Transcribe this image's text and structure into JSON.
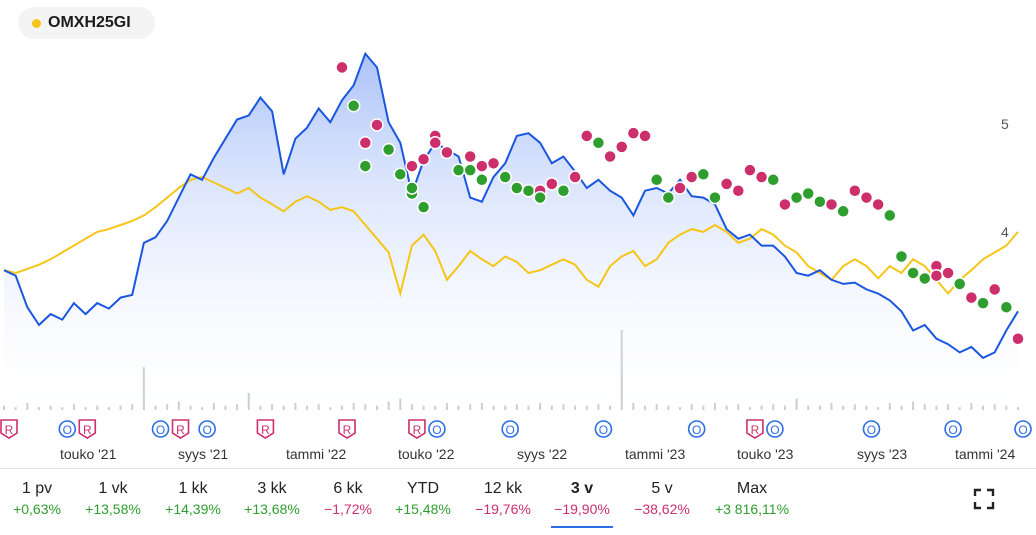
{
  "legend": {
    "label": "OMXH25GI",
    "color": "#f5c518"
  },
  "colors": {
    "stock_line": "#1a56e0",
    "index_line": "#f5c518",
    "area_top": "#9db8f7",
    "area_bottom": "#ffffff",
    "green_marker": "#2e9e2e",
    "red_marker": "#cc2f6b",
    "positive": "#2e9e2e",
    "negative": "#cc2f6b"
  },
  "chart_data": {
    "type": "line",
    "y_ticks": [
      "5",
      "4"
    ],
    "x_tick_labels": [
      "touko '21",
      "syys '21",
      "tammi '22",
      "touko '22",
      "syys '22",
      "tammi '23",
      "touko '23",
      "syys '23",
      "tammi '24"
    ],
    "series": [
      {
        "name": "",
        "values": [
          4.02,
          3.98,
          3.75,
          3.62,
          3.7,
          3.66,
          3.78,
          3.7,
          3.78,
          3.74,
          3.82,
          3.84,
          4.22,
          4.26,
          4.38,
          4.55,
          4.72,
          4.68,
          4.84,
          4.98,
          5.12,
          5.15,
          5.28,
          5.18,
          4.72,
          4.98,
          5.06,
          5.2,
          5.1,
          5.26,
          5.37,
          5.6,
          5.5,
          5.1,
          4.95,
          4.58,
          4.82,
          4.95,
          4.9,
          4.85,
          4.55,
          4.52,
          4.7,
          4.8,
          5.0,
          5.02,
          4.95,
          4.8,
          4.85,
          4.74,
          4.62,
          4.68,
          4.6,
          4.55,
          4.42,
          4.6,
          4.62,
          4.58,
          4.68,
          4.56,
          4.55,
          4.5,
          4.32,
          4.25,
          4.28,
          4.2,
          4.2,
          4.12,
          4.0,
          3.98,
          4.02,
          3.95,
          3.92,
          3.93,
          3.88,
          3.85,
          3.8,
          3.72,
          3.58,
          3.62,
          3.52,
          3.48,
          3.42,
          3.46,
          3.38,
          3.42,
          3.58,
          3.72
        ]
      },
      {
        "name": "OMXH25GI",
        "values": [
          4.02,
          4.0,
          4.03,
          4.06,
          4.1,
          4.15,
          4.2,
          4.25,
          4.3,
          4.32,
          4.35,
          4.38,
          4.42,
          4.48,
          4.55,
          4.62,
          4.68,
          4.7,
          4.66,
          4.62,
          4.58,
          4.62,
          4.55,
          4.5,
          4.45,
          4.52,
          4.56,
          4.52,
          4.46,
          4.48,
          4.45,
          4.35,
          4.25,
          4.15,
          3.85,
          4.2,
          4.28,
          4.16,
          3.95,
          4.05,
          4.16,
          4.1,
          4.05,
          4.12,
          4.08,
          4.0,
          4.02,
          4.06,
          4.1,
          4.06,
          3.95,
          3.9,
          4.05,
          4.12,
          4.16,
          4.05,
          4.1,
          4.22,
          4.28,
          4.32,
          4.3,
          4.35,
          4.3,
          4.22,
          4.25,
          4.32,
          4.28,
          4.2,
          4.15,
          4.05,
          4.0,
          3.95,
          4.05,
          4.1,
          4.05,
          3.96,
          4.05,
          4.0,
          4.1,
          4.05,
          3.95,
          3.85,
          3.95,
          4.02,
          4.1,
          4.15,
          4.2,
          4.3
        ]
      }
    ],
    "markers": [
      {
        "i": 29,
        "v": 5.5,
        "c": "r"
      },
      {
        "i": 30,
        "v": 5.22,
        "c": "g"
      },
      {
        "i": 31,
        "v": 4.95,
        "c": "r"
      },
      {
        "i": 31,
        "v": 4.78,
        "c": "g"
      },
      {
        "i": 32,
        "v": 5.08,
        "c": "r"
      },
      {
        "i": 33,
        "v": 4.9,
        "c": "g"
      },
      {
        "i": 34,
        "v": 4.72,
        "c": "g"
      },
      {
        "i": 35,
        "v": 4.58,
        "c": "g"
      },
      {
        "i": 36,
        "v": 4.48,
        "c": "g"
      },
      {
        "i": 35,
        "v": 4.62,
        "c": "g"
      },
      {
        "i": 35,
        "v": 4.78,
        "c": "r"
      },
      {
        "i": 36,
        "v": 4.83,
        "c": "r"
      },
      {
        "i": 37,
        "v": 5.0,
        "c": "r"
      },
      {
        "i": 37,
        "v": 4.95,
        "c": "r"
      },
      {
        "i": 38,
        "v": 4.88,
        "c": "r"
      },
      {
        "i": 39,
        "v": 4.75,
        "c": "g"
      },
      {
        "i": 40,
        "v": 4.75,
        "c": "g"
      },
      {
        "i": 40,
        "v": 4.85,
        "c": "r"
      },
      {
        "i": 41,
        "v": 4.78,
        "c": "r"
      },
      {
        "i": 41,
        "v": 4.68,
        "c": "g"
      },
      {
        "i": 42,
        "v": 4.8,
        "c": "r"
      },
      {
        "i": 43,
        "v": 4.7,
        "c": "g"
      },
      {
        "i": 44,
        "v": 4.62,
        "c": "g"
      },
      {
        "i": 45,
        "v": 4.6,
        "c": "g"
      },
      {
        "i": 46,
        "v": 4.6,
        "c": "r"
      },
      {
        "i": 46,
        "v": 4.55,
        "c": "g"
      },
      {
        "i": 47,
        "v": 4.65,
        "c": "r"
      },
      {
        "i": 48,
        "v": 4.6,
        "c": "g"
      },
      {
        "i": 49,
        "v": 4.7,
        "c": "r"
      },
      {
        "i": 50,
        "v": 5.0,
        "c": "r"
      },
      {
        "i": 51,
        "v": 4.95,
        "c": "g"
      },
      {
        "i": 52,
        "v": 4.85,
        "c": "r"
      },
      {
        "i": 53,
        "v": 4.92,
        "c": "r"
      },
      {
        "i": 54,
        "v": 5.02,
        "c": "r"
      },
      {
        "i": 55,
        "v": 5.0,
        "c": "r"
      },
      {
        "i": 56,
        "v": 4.68,
        "c": "g"
      },
      {
        "i": 57,
        "v": 4.55,
        "c": "g"
      },
      {
        "i": 58,
        "v": 4.62,
        "c": "r"
      },
      {
        "i": 59,
        "v": 4.7,
        "c": "r"
      },
      {
        "i": 60,
        "v": 4.72,
        "c": "g"
      },
      {
        "i": 61,
        "v": 4.55,
        "c": "g"
      },
      {
        "i": 62,
        "v": 4.65,
        "c": "r"
      },
      {
        "i": 63,
        "v": 4.6,
        "c": "r"
      },
      {
        "i": 64,
        "v": 4.75,
        "c": "r"
      },
      {
        "i": 65,
        "v": 4.7,
        "c": "r"
      },
      {
        "i": 66,
        "v": 4.68,
        "c": "g"
      },
      {
        "i": 67,
        "v": 4.5,
        "c": "r"
      },
      {
        "i": 68,
        "v": 4.55,
        "c": "g"
      },
      {
        "i": 69,
        "v": 4.58,
        "c": "g"
      },
      {
        "i": 70,
        "v": 4.52,
        "c": "g"
      },
      {
        "i": 71,
        "v": 4.5,
        "c": "r"
      },
      {
        "i": 72,
        "v": 4.45,
        "c": "g"
      },
      {
        "i": 73,
        "v": 4.6,
        "c": "r"
      },
      {
        "i": 74,
        "v": 4.55,
        "c": "r"
      },
      {
        "i": 75,
        "v": 4.5,
        "c": "r"
      },
      {
        "i": 76,
        "v": 4.42,
        "c": "g"
      },
      {
        "i": 77,
        "v": 4.12,
        "c": "g"
      },
      {
        "i": 78,
        "v": 4.0,
        "c": "g"
      },
      {
        "i": 79,
        "v": 3.96,
        "c": "g"
      },
      {
        "i": 80,
        "v": 4.05,
        "c": "r"
      },
      {
        "i": 80,
        "v": 3.98,
        "c": "r"
      },
      {
        "i": 81,
        "v": 4.0,
        "c": "r"
      },
      {
        "i": 82,
        "v": 3.92,
        "c": "g"
      },
      {
        "i": 83,
        "v": 3.82,
        "c": "r"
      },
      {
        "i": 84,
        "v": 3.78,
        "c": "g"
      },
      {
        "i": 85,
        "v": 3.88,
        "c": "r"
      },
      {
        "i": 86,
        "v": 3.75,
        "c": "g"
      },
      {
        "i": 87,
        "v": 3.52,
        "c": "r"
      }
    ],
    "volume": [
      3,
      2,
      5,
      2,
      3,
      2,
      4,
      2,
      3,
      2,
      3,
      4,
      30,
      3,
      4,
      6,
      3,
      2,
      5,
      3,
      4,
      12,
      3,
      4,
      3,
      5,
      3,
      4,
      2,
      3,
      5,
      4,
      3,
      6,
      8,
      4,
      3,
      3,
      5,
      3,
      4,
      5,
      3,
      3,
      4,
      3,
      5,
      3,
      4,
      3,
      3,
      4,
      3,
      56,
      5,
      3,
      4,
      3,
      2,
      4,
      3,
      5,
      3,
      4,
      2,
      3,
      4,
      3,
      8,
      3,
      3,
      5,
      3,
      4,
      3,
      2,
      5,
      3,
      6,
      4,
      3,
      4,
      2,
      5,
      3,
      4,
      3,
      2
    ],
    "events": [
      {
        "pos": 0,
        "letters": [
          "R"
        ]
      },
      {
        "pos": 5,
        "letters": [
          "O",
          "R"
        ]
      },
      {
        "pos": 13,
        "letters": [
          "O",
          "R"
        ]
      },
      {
        "pos": 17,
        "letters": [
          "O"
        ]
      },
      {
        "pos": 22,
        "letters": [
          "R"
        ]
      },
      {
        "pos": 29,
        "letters": [
          "R"
        ]
      },
      {
        "pos": 35,
        "letters": [
          "R",
          "O"
        ]
      },
      {
        "pos": 43,
        "letters": [
          "O"
        ]
      },
      {
        "pos": 51,
        "letters": [
          "O"
        ]
      },
      {
        "pos": 59,
        "letters": [
          "O"
        ]
      },
      {
        "pos": 64,
        "letters": [
          "R",
          "O"
        ]
      },
      {
        "pos": 74,
        "letters": [
          "O"
        ]
      },
      {
        "pos": 81,
        "letters": [
          "O"
        ]
      },
      {
        "pos": 87,
        "letters": [
          "O"
        ]
      }
    ]
  },
  "ranges": [
    {
      "label": "1 pv",
      "change": "+0,63%",
      "positive": true
    },
    {
      "label": "1 vk",
      "change": "+13,58%",
      "positive": true
    },
    {
      "label": "1 kk",
      "change": "+14,39%",
      "positive": true
    },
    {
      "label": "3 kk",
      "change": "+13,68%",
      "positive": true
    },
    {
      "label": "6 kk",
      "change": "−1,72%",
      "positive": false
    },
    {
      "label": "YTD",
      "change": "+15,48%",
      "positive": true
    },
    {
      "label": "12 kk",
      "change": "−19,76%",
      "positive": false
    },
    {
      "label": "3 v",
      "change": "−19,90%",
      "positive": false,
      "active": true
    },
    {
      "label": "5 v",
      "change": "−38,62%",
      "positive": false
    },
    {
      "label": "Max",
      "change": "+3 816,11%",
      "positive": true
    }
  ]
}
